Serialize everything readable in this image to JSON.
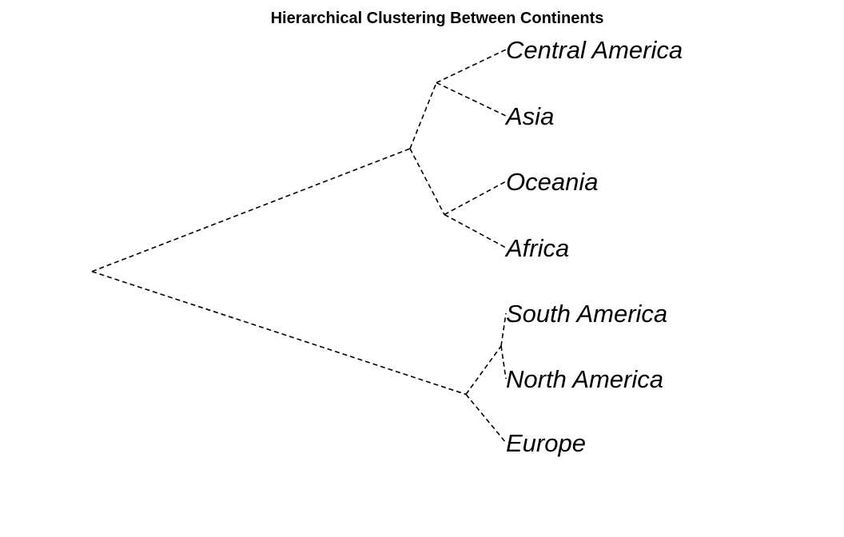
{
  "title": "Hierarchical Clustering Between Continents",
  "colors": {
    "line": "#000000",
    "text": "#000000",
    "background": "#ffffff"
  },
  "orientation": "root-left, leaves-right",
  "line_style": "dashed",
  "leaves": [
    "Central America",
    "Asia",
    "Oceania",
    "Africa",
    "South America",
    "North America",
    "Europe"
  ],
  "tree": {
    "children": [
      {
        "children": [
          {
            "children": [
              {
                "leaf": "Central America"
              },
              {
                "leaf": "Asia"
              }
            ]
          },
          {
            "children": [
              {
                "leaf": "Oceania"
              },
              {
                "leaf": "Africa"
              }
            ]
          }
        ]
      },
      {
        "children": [
          {
            "children": [
              {
                "leaf": "South America"
              },
              {
                "leaf": "North America"
              }
            ]
          },
          {
            "leaf": "Europe"
          }
        ]
      }
    ]
  }
}
